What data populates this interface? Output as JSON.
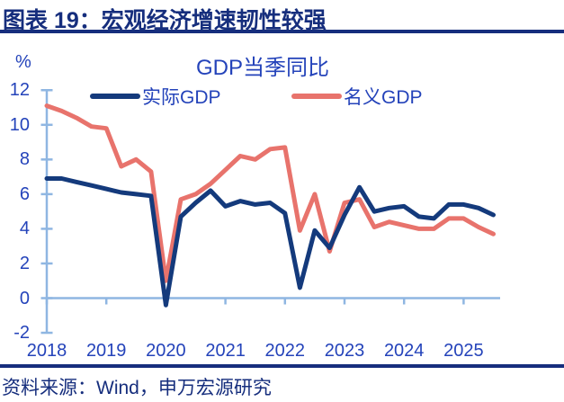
{
  "header": {
    "title": "图表 19：宏观经济增速韧性较强"
  },
  "footer": {
    "source": "资料来源：Wind，申万宏源研究"
  },
  "chart_data": {
    "type": "line",
    "title": "GDP当季同比",
    "ylabel": "%",
    "ylim": [
      -2,
      12
    ],
    "yticks": [
      12,
      10,
      8,
      6,
      4,
      2,
      0,
      -2
    ],
    "x_tick_labels": [
      "2018",
      "2019",
      "2020",
      "2021",
      "2022",
      "2023",
      "2024",
      "2025"
    ],
    "x_quarters": [
      "2018Q1",
      "2018Q2",
      "2018Q3",
      "2018Q4",
      "2019Q1",
      "2019Q2",
      "2019Q3",
      "2019Q4",
      "2020Q1",
      "2020Q2",
      "2020Q3",
      "2020Q4",
      "2021Q1",
      "2021Q2",
      "2021Q3",
      "2021Q4",
      "2022Q1",
      "2022Q2",
      "2022Q3",
      "2022Q4",
      "2023Q1",
      "2023Q2",
      "2023Q3",
      "2023Q4",
      "2024Q1",
      "2024Q2",
      "2024Q3",
      "2024Q4",
      "2025Q1",
      "2025Q2",
      "2025Q3"
    ],
    "legend_position": "top",
    "grid": "zero-baseline-only",
    "series": [
      {
        "name": "实际GDP",
        "color": "#143A7C",
        "values": [
          6.9,
          6.9,
          6.7,
          6.5,
          6.3,
          6.1,
          6.0,
          5.9,
          -0.4,
          4.7,
          5.5,
          6.2,
          5.3,
          5.6,
          5.4,
          5.5,
          4.9,
          0.6,
          3.9,
          2.9,
          4.8,
          6.4,
          5.0,
          5.2,
          5.3,
          4.7,
          4.6,
          5.4,
          5.4,
          5.2,
          4.8
        ]
      },
      {
        "name": "名义GDP",
        "color": "#E8736C",
        "values": [
          11.1,
          10.8,
          10.4,
          9.9,
          9.8,
          7.6,
          8.0,
          7.3,
          1.0,
          5.7,
          6.0,
          6.6,
          7.4,
          8.2,
          8.0,
          8.6,
          8.7,
          3.9,
          6.0,
          2.7,
          5.5,
          5.7,
          4.1,
          4.4,
          4.2,
          4.0,
          4.0,
          4.6,
          4.6,
          4.1,
          3.7
        ]
      }
    ]
  },
  "colors": {
    "header_navy": "#162E7D",
    "text_blue": "#2443BA",
    "axis_blue": "#8FB6E2",
    "real_gdp_navy": "#143A7C",
    "nominal_gdp_red": "#E8736C",
    "background": "#FFFFFF"
  }
}
